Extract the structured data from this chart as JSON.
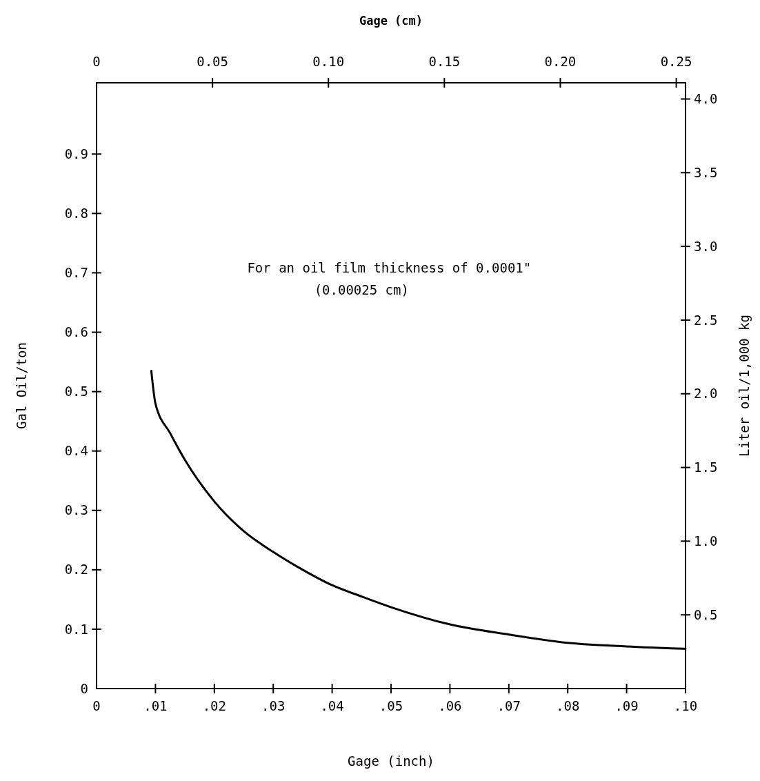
{
  "chart_data": {
    "type": "line",
    "xlabel": "Gage (inch)",
    "x2label": "Gage (cm)",
    "ylabel": "Gal Oil/ton",
    "y2label": "Liter oil/1,000 kg",
    "annotations": [
      "For an oil film thickness of 0.0001\"",
      "(0.00025 cm)"
    ],
    "xlim": [
      0,
      0.1
    ],
    "xticks": [
      0,
      {
        "value": 0.01,
        "label": ".01"
      },
      {
        "value": 0.02,
        "label": ".02"
      },
      {
        "value": 0.03,
        "label": ".03"
      },
      {
        "value": 0.04,
        "label": ".04"
      },
      {
        "value": 0.05,
        "label": ".05"
      },
      {
        "value": 0.06,
        "label": ".06"
      },
      {
        "value": 0.07,
        "label": ".07"
      },
      {
        "value": 0.08,
        "label": ".08"
      },
      {
        "value": 0.09,
        "label": ".09"
      },
      {
        "value": 0.1,
        "label": ".10"
      }
    ],
    "x2lim": [
      0,
      0.254
    ],
    "x2ticks": [
      0,
      {
        "value": 0.05,
        "label": "0.05"
      },
      {
        "value": 0.1,
        "label": "0.10"
      },
      0.15,
      {
        "value": 0.2,
        "label": "0.20"
      },
      0.25
    ],
    "ylim": [
      0,
      1.02
    ],
    "yticks": [
      0,
      0.1,
      0.2,
      0.3,
      0.4,
      0.5,
      0.6,
      0.7,
      0.8,
      0.9
    ],
    "y2lim": [
      0,
      4.11
    ],
    "y2ticks": [
      0.5,
      {
        "value": 1,
        "label": "1.0"
      },
      1.5,
      {
        "value": 2,
        "label": "2.0"
      },
      2.5,
      {
        "value": 3,
        "label": "3.0"
      },
      3.5,
      {
        "value": 4,
        "label": "4.0"
      }
    ],
    "grid": false,
    "marker": "none",
    "line_style": "solid",
    "x": [
      0.0093,
      0.01,
      0.0125,
      0.015,
      0.02,
      0.025,
      0.03,
      0.035,
      0.04,
      0.045,
      0.05,
      0.06,
      0.07,
      0.08,
      0.09,
      0.1
    ],
    "series": [
      {
        "color": "#000000",
        "values": [
          0.535,
          0.48,
          0.43,
          0.385,
          0.315,
          0.265,
          0.23,
          0.2,
          0.174,
          0.155,
          0.137,
          0.108,
          0.091,
          0.077,
          0.071,
          0.067
        ]
      }
    ]
  }
}
